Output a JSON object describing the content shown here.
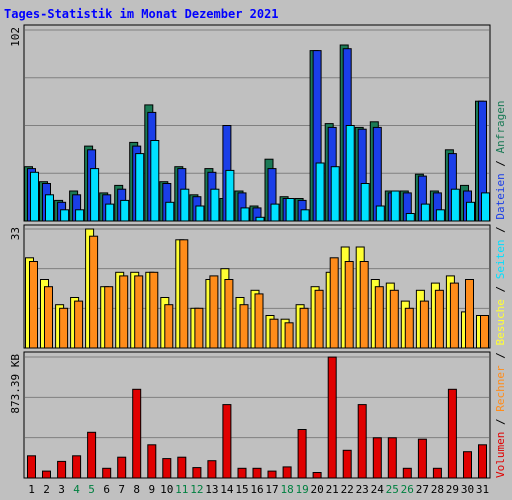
{
  "title": "Tages-Statistik im Monat Dezember 2021",
  "colors": {
    "background": "#c0c0c0",
    "panel_background": "#c0c0c0",
    "grid": "#808080",
    "title": "#0000ff",
    "weekday_label": "#000000",
    "weekend_label": "#008040",
    "anfragen": "#1b7a56",
    "dateien": "#1a3ee8",
    "seiten": "#00e0ff",
    "besuche": "#ffff33",
    "rechner": "#ff8c1a",
    "volumen": "#e00000"
  },
  "legend": {
    "anfragen": "Anfragen",
    "dateien": "Dateien",
    "seiten": "Seiten",
    "besuche": "Besuche",
    "rechner": "Rechner",
    "volumen": "Volumen",
    "separator": "/"
  },
  "chart_data": {
    "type": "bar",
    "title": "Tages-Statistik im Monat Dezember 2021",
    "categories": [
      "1",
      "2",
      "3",
      "4",
      "5",
      "6",
      "7",
      "8",
      "9",
      "10",
      "11",
      "12",
      "13",
      "14",
      "15",
      "16",
      "17",
      "18",
      "19",
      "20",
      "21",
      "22",
      "23",
      "24",
      "25",
      "26",
      "27",
      "28",
      "29",
      "30",
      "31"
    ],
    "weekend_days": [
      "4",
      "5",
      "11",
      "12",
      "18",
      "19",
      "25",
      "26"
    ],
    "panels": [
      {
        "id": "requests",
        "max_label": "102",
        "ylim": [
          0,
          102
        ],
        "series": [
          {
            "name": "Anfragen",
            "color": "#1b7a56",
            "values": [
              29,
              21,
              11,
              16,
              40,
              15,
              19,
              42,
              62,
              21,
              29,
              14,
              28,
              12,
              16,
              8,
              33,
              13,
              12,
              91,
              52,
              94,
              50,
              53,
              16,
              16,
              25,
              16,
              38,
              19,
              64
            ]
          },
          {
            "name": "Dateien",
            "color": "#1a3ee8",
            "values": [
              28,
              20,
              10,
              14,
              38,
              14,
              17,
              40,
              58,
              20,
              28,
              13,
              26,
              51,
              15,
              7,
              28,
              12,
              11,
              91,
              50,
              92,
              49,
              50,
              15,
              15,
              24,
              15,
              36,
              16,
              64
            ]
          },
          {
            "name": "Seiten",
            "color": "#00e0ff",
            "values": [
              26,
              14,
              6,
              6,
              28,
              9,
              11,
              36,
              43,
              10,
              17,
              8,
              17,
              27,
              7,
              2,
              9,
              12,
              6,
              31,
              29,
              51,
              20,
              8,
              16,
              4,
              9,
              6,
              17,
              10,
              15
            ]
          }
        ]
      },
      {
        "id": "visits",
        "max_label": "33",
        "ylim": [
          0,
          33
        ],
        "series": [
          {
            "name": "Besuche",
            "color": "#ffff33",
            "values": [
              25,
              19,
              12,
              14,
              33,
              17,
              21,
              21,
              21,
              14,
              30,
              11,
              19,
              22,
              14,
              16,
              9,
              8,
              12,
              17,
              21,
              28,
              28,
              19,
              18,
              13,
              16,
              18,
              20,
              10,
              9
            ]
          },
          {
            "name": "Rechner",
            "color": "#ff8c1a",
            "values": [
              24,
              17,
              11,
              13,
              31,
              17,
              20,
              20,
              21,
              12,
              30,
              11,
              20,
              19,
              12,
              15,
              8,
              7,
              11,
              16,
              25,
              24,
              24,
              17,
              16,
              11,
              13,
              16,
              18,
              19,
              9
            ]
          }
        ]
      },
      {
        "id": "volume",
        "max_label": "873.39 KB",
        "ylim": [
          0,
          873.39
        ],
        "series": [
          {
            "name": "Volumen",
            "color": "#e00000",
            "values": [
              160,
              50,
              120,
              160,
              330,
              70,
              150,
              640,
              240,
              140,
              150,
              75,
              125,
              530,
              70,
              70,
              50,
              80,
              350,
              40,
              873,
              200,
              530,
              290,
              290,
              70,
              280,
              70,
              640,
              190,
              240
            ]
          }
        ]
      }
    ]
  }
}
